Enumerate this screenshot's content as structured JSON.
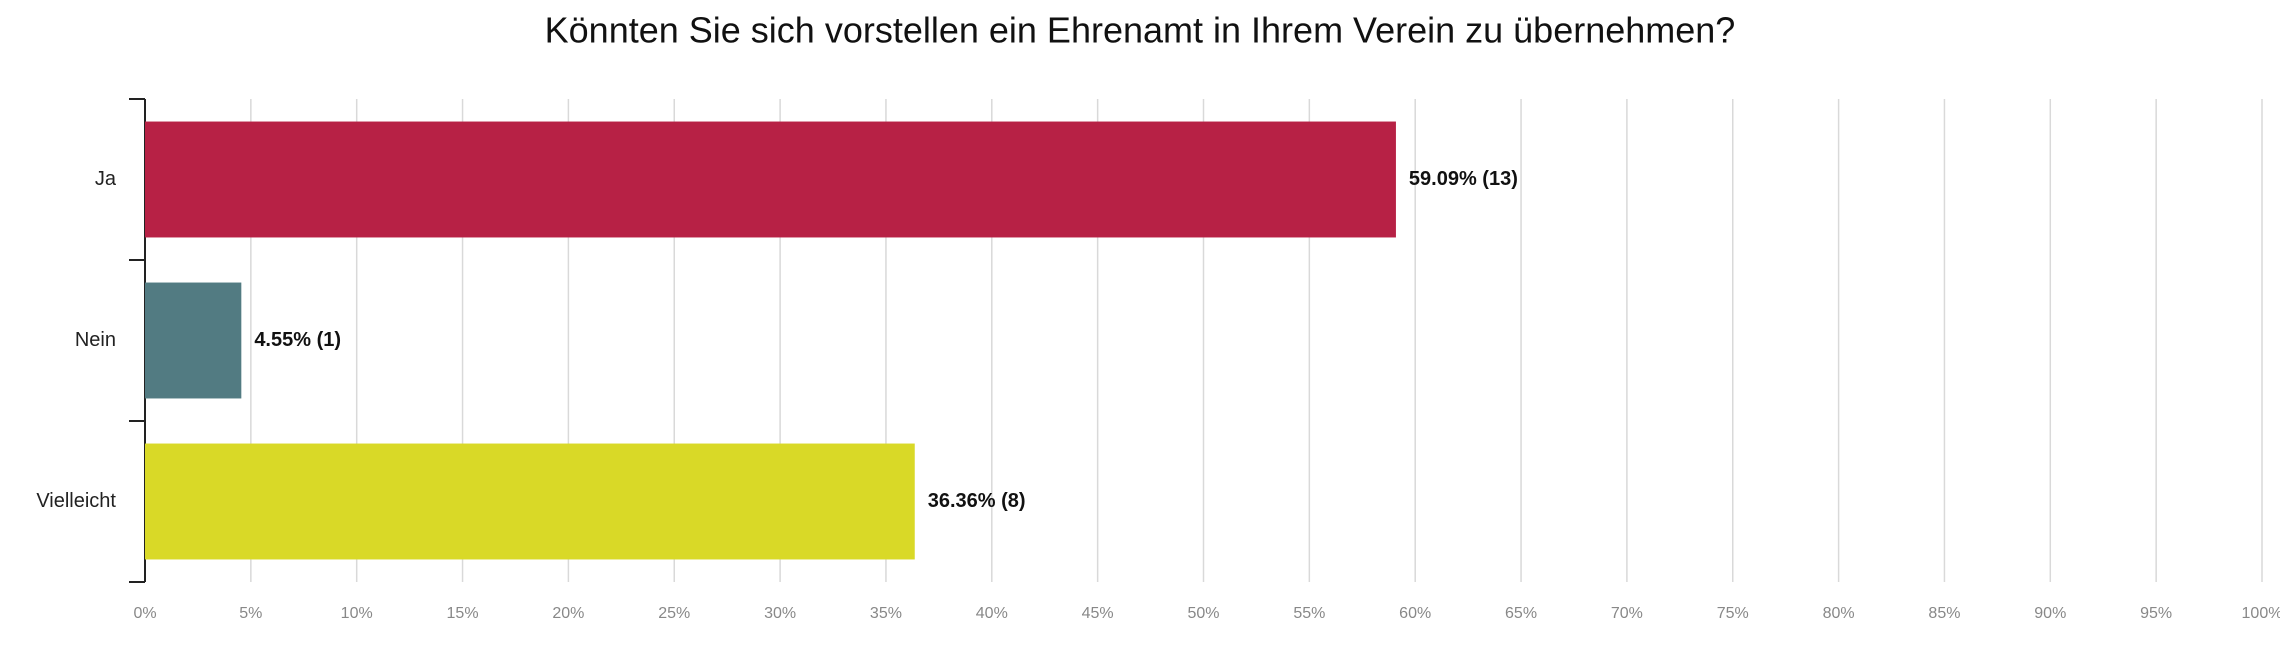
{
  "chart_data": {
    "type": "bar",
    "orientation": "horizontal",
    "title": "Könnten Sie sich vorstellen ein Ehrenamt in Ihrem Verein zu übernehmen?",
    "categories": [
      "Ja",
      "Nein",
      "Vielleicht"
    ],
    "values": [
      59.09,
      4.55,
      36.36
    ],
    "value_labels": [
      "59.09% (13)",
      "4.55% (1)",
      "36.36% (8)"
    ],
    "colors": [
      "#b72145",
      "#527b82",
      "#d9d927"
    ],
    "xlim": [
      0,
      100
    ],
    "xticks": [
      {
        "value": 0,
        "label": "0%"
      },
      {
        "value": 5,
        "label": "5%"
      },
      {
        "value": 10,
        "label": "10%"
      },
      {
        "value": 15,
        "label": "15%"
      },
      {
        "value": 20,
        "label": "20%"
      },
      {
        "value": 25,
        "label": "25%"
      },
      {
        "value": 30,
        "label": "30%"
      },
      {
        "value": 35,
        "label": "35%"
      },
      {
        "value": 40,
        "label": "40%"
      },
      {
        "value": 45,
        "label": "45%"
      },
      {
        "value": 50,
        "label": "50%"
      },
      {
        "value": 55,
        "label": "55%"
      },
      {
        "value": 60,
        "label": "60%"
      },
      {
        "value": 65,
        "label": "65%"
      },
      {
        "value": 70,
        "label": "70%"
      },
      {
        "value": 75,
        "label": "75%"
      },
      {
        "value": 80,
        "label": "80%"
      },
      {
        "value": 85,
        "label": "85%"
      },
      {
        "value": 90,
        "label": "90%"
      },
      {
        "value": 95,
        "label": "95%"
      },
      {
        "value": 100,
        "label": "100%"
      }
    ],
    "grid": true
  }
}
